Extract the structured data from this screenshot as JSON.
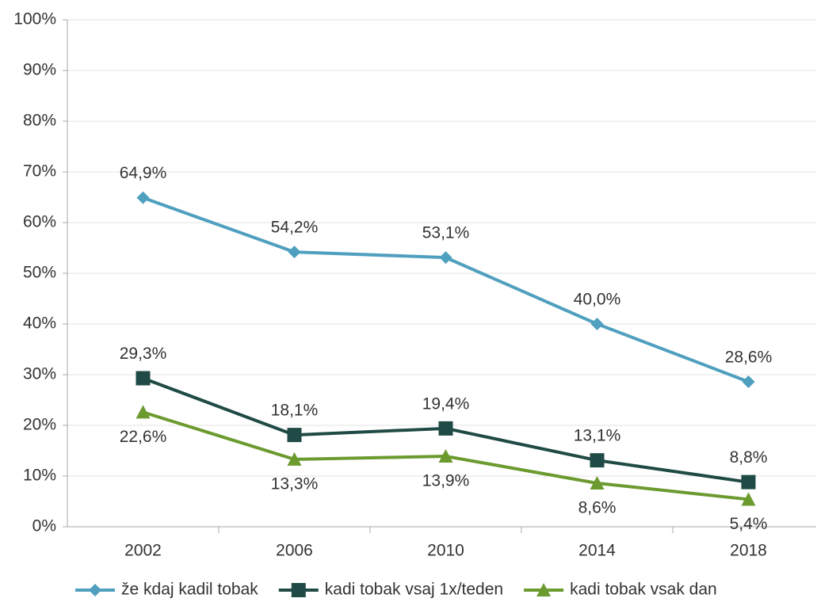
{
  "chart_data": {
    "type": "line",
    "categories": [
      "2002",
      "2006",
      "2010",
      "2014",
      "2018"
    ],
    "series": [
      {
        "name": "že kdaj kadil tobak",
        "color": "#4f9fbf",
        "marker": "diamond",
        "values": [
          64.9,
          54.2,
          53.1,
          40.0,
          28.6
        ],
        "value_labels": [
          "64,9%",
          "54,2%",
          "53,1%",
          "40,0%",
          "28,6%"
        ]
      },
      {
        "name": "kadi tobak vsaj 1x/teden",
        "color": "#1f4a45",
        "marker": "square",
        "values": [
          29.3,
          18.1,
          19.4,
          13.1,
          8.8
        ],
        "value_labels": [
          "29,3%",
          "18,1%",
          "19,4%",
          "13,1%",
          "8,8%"
        ]
      },
      {
        "name": "kadi tobak vsak dan",
        "color": "#6b9a2f",
        "marker": "triangle",
        "values": [
          22.6,
          13.3,
          13.9,
          8.6,
          5.4
        ],
        "value_labels": [
          "22,6%",
          "13,3%",
          "13,9%",
          "8,6%",
          "5,4%"
        ]
      }
    ],
    "ylim": [
      0,
      100
    ],
    "yticks": [
      {
        "value": 0,
        "label": "0%"
      },
      {
        "value": 10,
        "label": "10%"
      },
      {
        "value": 20,
        "label": "20%"
      },
      {
        "value": 30,
        "label": "30%"
      },
      {
        "value": 40,
        "label": "40%"
      },
      {
        "value": 50,
        "label": "50%"
      },
      {
        "value": 60,
        "label": "60%"
      },
      {
        "value": 70,
        "label": "70%"
      },
      {
        "value": 80,
        "label": "80%"
      },
      {
        "value": 90,
        "label": "90%"
      },
      {
        "value": 100,
        "label": "100%"
      }
    ],
    "grid": true,
    "legend": "bottom"
  }
}
